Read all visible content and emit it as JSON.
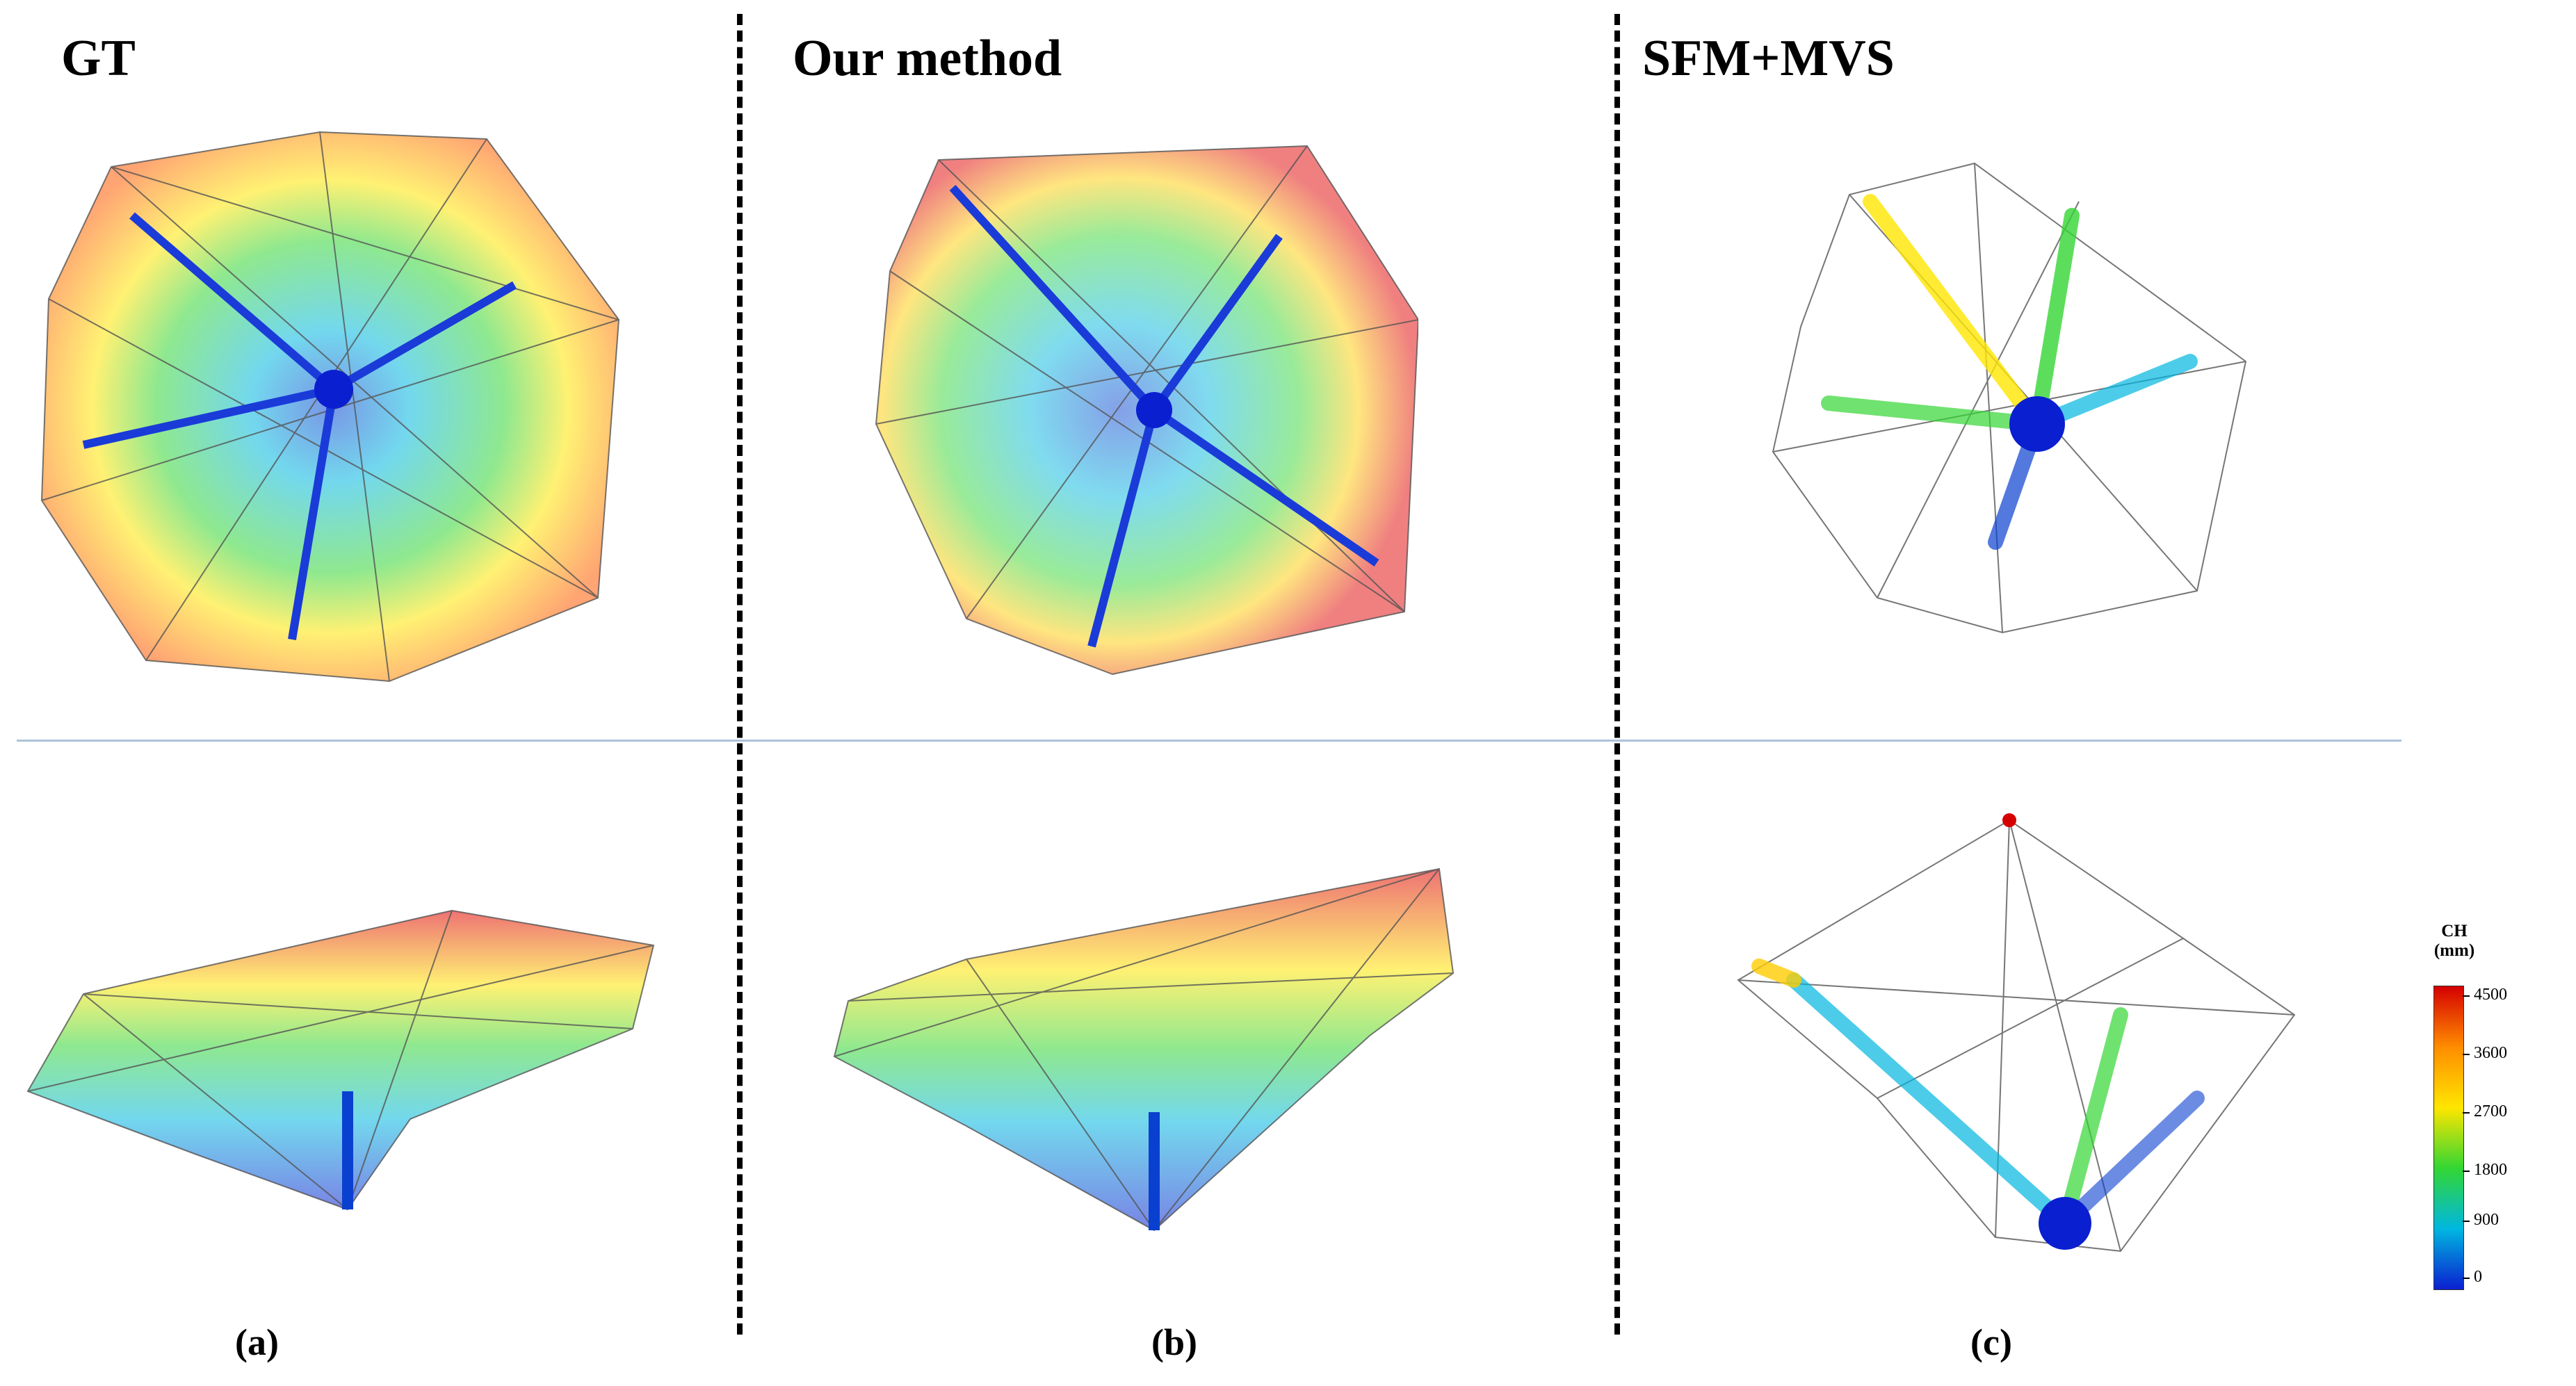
{
  "titles": {
    "gt": "GT",
    "ours": "Our method",
    "sfm": "SFM+MVS"
  },
  "captions": {
    "a": "(a)",
    "b": "(b)",
    "c": "(c)"
  },
  "colorbar": {
    "label_line1": "CH",
    "label_line2": "(mm)",
    "ticks": [
      "4500",
      "3600",
      "2700",
      "1800",
      "900",
      "0"
    ],
    "colors": [
      "#d50000",
      "#ff8c00",
      "#ffe600",
      "#33d633",
      "#00b7e0",
      "#0a1fd0"
    ]
  },
  "panels": [
    {
      "id": "gt-top",
      "view": "top"
    },
    {
      "id": "ours-top",
      "view": "top"
    },
    {
      "id": "sfm-top",
      "view": "top"
    },
    {
      "id": "gt-side",
      "view": "side"
    },
    {
      "id": "ours-side",
      "view": "side"
    },
    {
      "id": "sfm-side",
      "view": "side"
    }
  ]
}
